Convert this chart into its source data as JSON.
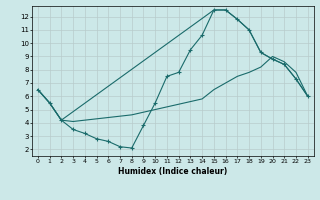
{
  "xlabel": "Humidex (Indice chaleur)",
  "bg_color": "#cce8e8",
  "grid_color": "#b8cccc",
  "line_color": "#1a6b6b",
  "xlim": [
    -0.5,
    23.5
  ],
  "ylim": [
    1.5,
    12.8
  ],
  "xtick_vals": [
    0,
    1,
    2,
    3,
    4,
    5,
    6,
    7,
    8,
    9,
    10,
    11,
    12,
    13,
    14,
    15,
    16,
    17,
    18,
    19,
    20,
    21,
    22,
    23
  ],
  "ytick_vals": [
    2,
    3,
    4,
    5,
    6,
    7,
    8,
    9,
    10,
    11,
    12
  ],
  "line_zigzag_x": [
    0,
    1,
    2,
    3,
    4,
    5,
    6,
    7,
    8,
    9,
    10,
    11,
    12,
    13,
    14,
    15,
    16,
    17,
    18,
    19,
    20,
    21,
    22,
    23
  ],
  "line_zigzag_y": [
    6.5,
    5.5,
    4.2,
    3.5,
    3.2,
    2.8,
    2.6,
    2.2,
    2.1,
    3.8,
    5.5,
    7.5,
    7.8,
    9.5,
    10.6,
    12.5,
    12.5,
    11.8,
    11.0,
    9.3,
    8.8,
    8.4,
    7.3,
    6.0
  ],
  "line_low_x": [
    0,
    1,
    2,
    3,
    4,
    5,
    6,
    7,
    8,
    9,
    10,
    11,
    12,
    13,
    14,
    15,
    16,
    17,
    18,
    19,
    20,
    21,
    22,
    23
  ],
  "line_low_y": [
    6.5,
    5.5,
    4.2,
    4.1,
    4.2,
    4.3,
    4.4,
    4.5,
    4.6,
    4.8,
    5.0,
    5.2,
    5.4,
    5.6,
    5.8,
    6.5,
    7.0,
    7.5,
    7.8,
    8.2,
    9.0,
    8.6,
    7.8,
    6.0
  ],
  "line_high_x": [
    0,
    1,
    2,
    15,
    16,
    17,
    18,
    19,
    20,
    21,
    22,
    23
  ],
  "line_high_y": [
    6.5,
    5.5,
    4.2,
    12.5,
    12.5,
    11.8,
    11.0,
    9.3,
    8.8,
    8.4,
    7.3,
    6.0
  ]
}
